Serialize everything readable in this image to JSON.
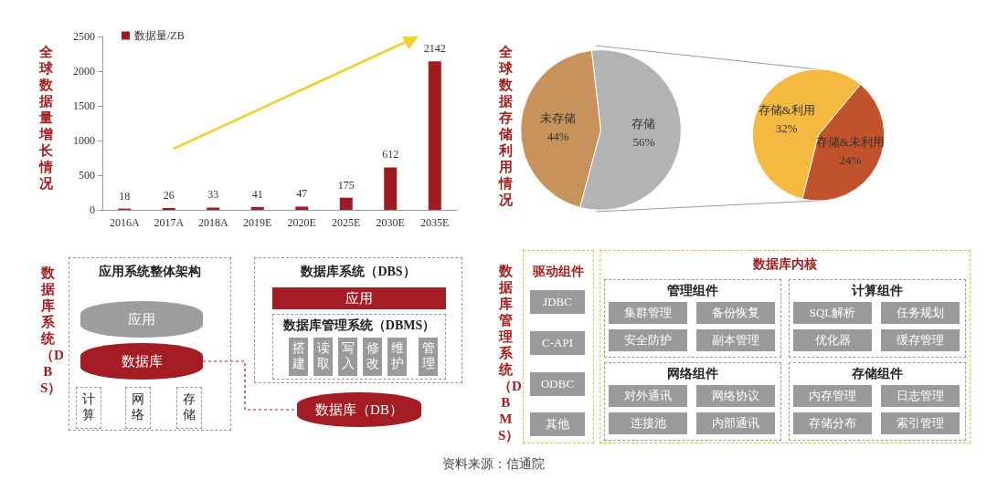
{
  "chart_data": [
    {
      "type": "bar",
      "title": "全球数据量增长情况",
      "categories": [
        "2016A",
        "2017A",
        "2018A",
        "2019E",
        "2020E",
        "2025E",
        "2030E",
        "2035E"
      ],
      "series": [
        {
          "name": "数据量/ZB",
          "color": "#9e1c1f",
          "values": [
            18,
            26,
            33,
            41,
            47,
            175,
            612,
            2142
          ]
        }
      ],
      "ylim": [
        0,
        2500
      ],
      "yticks": [
        0,
        500,
        1000,
        1500,
        2000,
        2500
      ],
      "data_labels": true,
      "legend": "top left",
      "annotations": [
        "资料来源：信通院"
      ]
    },
    {
      "type": "pie",
      "title": "全球数据存储利用情况",
      "categories": [
        "未存储",
        "存储"
      ],
      "values": [
        44,
        56
      ],
      "value_labels": [
        "44%",
        "56%"
      ],
      "colors": [
        "#c8925d",
        "#b3b3b3"
      ]
    },
    {
      "type": "pie",
      "categories": [
        "存储&利用",
        "存储&未利用"
      ],
      "values": [
        32,
        24
      ],
      "value_labels": [
        "32%",
        "24%"
      ],
      "colors": [
        "#f5b942",
        "#c0532b"
      ]
    },
    {
      "type": "other",
      "title": "数据库系统（DBS）",
      "annotations": [
        "应用系统整体架构",
        "应用",
        "数据库",
        "计算",
        "网络",
        "存储",
        "数据库系统（DBS）",
        "应用",
        "数据库管理系统（DBMS）",
        "搭建",
        "读取",
        "写入",
        "修改",
        "维护",
        "管理",
        "数据库（DB）"
      ]
    },
    {
      "type": "other",
      "title": "数据库管理系统（DBMS）",
      "annotations": [
        "驱动组件",
        "JDBC",
        "C-API",
        "ODBC",
        "其他",
        "数据库内核",
        "管理组件",
        "集群管理",
        "备份恢复",
        "安全防护",
        "副本管理",
        "计算组件",
        "SQL解析",
        "任务规划",
        "优化器",
        "缓存管理",
        "网络组件",
        "对外通讯",
        "网络协议",
        "连接池",
        "内部通讯",
        "存储组件",
        "内存管理",
        "日志管理",
        "存储分布",
        "索引管理"
      ]
    }
  ]
}
